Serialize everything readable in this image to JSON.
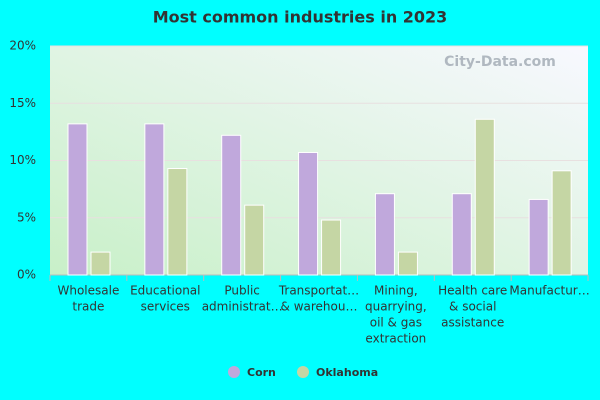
{
  "chart_data": {
    "type": "bar",
    "title": "Most common industries in 2023",
    "watermark": "City-Data.com",
    "categories": [
      [
        "Wholesale",
        "trade"
      ],
      [
        "Educational",
        "services"
      ],
      [
        "Public",
        "administrat…"
      ],
      [
        "Transportat…",
        "& warehou…"
      ],
      [
        "Mining,",
        "quarrying,",
        "oil & gas",
        "extraction"
      ],
      [
        "Health care",
        "& social",
        "assistance"
      ],
      [
        "Manufactur…"
      ]
    ],
    "series": [
      {
        "name": "Corn",
        "color": "#c0a8dc",
        "values": [
          13.2,
          13.2,
          12.2,
          10.7,
          7.1,
          7.1,
          6.6
        ]
      },
      {
        "name": "Oklahoma",
        "color": "#c5d6a4",
        "values": [
          2.0,
          9.3,
          6.1,
          4.8,
          2.0,
          13.6,
          9.1
        ]
      }
    ],
    "ylim": [
      0,
      20
    ],
    "yticks": [
      {
        "value": 0,
        "label": "0%"
      },
      {
        "value": 5,
        "label": "5%"
      },
      {
        "value": 10,
        "label": "10%"
      },
      {
        "value": 15,
        "label": "15%"
      },
      {
        "value": 20,
        "label": "20%"
      }
    ],
    "grid": true
  }
}
